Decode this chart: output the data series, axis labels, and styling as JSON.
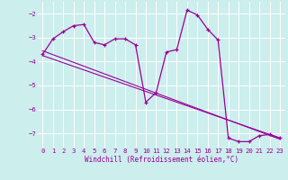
{
  "background_color": "#cceeed",
  "line_color": "#990099",
  "grid_color": "#ffffff",
  "xlabel": "Windchill (Refroidissement éolien,°C)",
  "xlim": [
    -0.5,
    23.5
  ],
  "ylim": [
    -7.6,
    -1.5
  ],
  "yticks": [
    -7,
    -6,
    -5,
    -4,
    -3,
    -2
  ],
  "xticks": [
    0,
    1,
    2,
    3,
    4,
    5,
    6,
    7,
    8,
    9,
    10,
    11,
    12,
    13,
    14,
    15,
    16,
    17,
    18,
    19,
    20,
    21,
    22,
    23
  ],
  "curve_x": [
    0,
    1,
    2,
    3,
    4,
    5,
    6,
    7,
    8,
    9,
    10,
    11,
    12,
    13,
    14,
    15,
    16,
    17,
    18,
    19,
    20,
    21,
    22,
    23
  ],
  "curve_y": [
    -3.7,
    -3.05,
    -2.75,
    -2.5,
    -2.45,
    -3.2,
    -3.3,
    -3.05,
    -3.05,
    -3.3,
    -5.7,
    -5.3,
    -3.6,
    -3.5,
    -1.85,
    -2.05,
    -2.65,
    -3.1,
    -7.2,
    -7.35,
    -7.35,
    -7.1,
    -7.05,
    -7.2
  ],
  "line1_x": [
    0,
    23
  ],
  "line1_y": [
    -3.55,
    -7.25
  ],
  "line2_x": [
    0,
    23
  ],
  "line2_y": [
    -3.75,
    -7.2
  ]
}
